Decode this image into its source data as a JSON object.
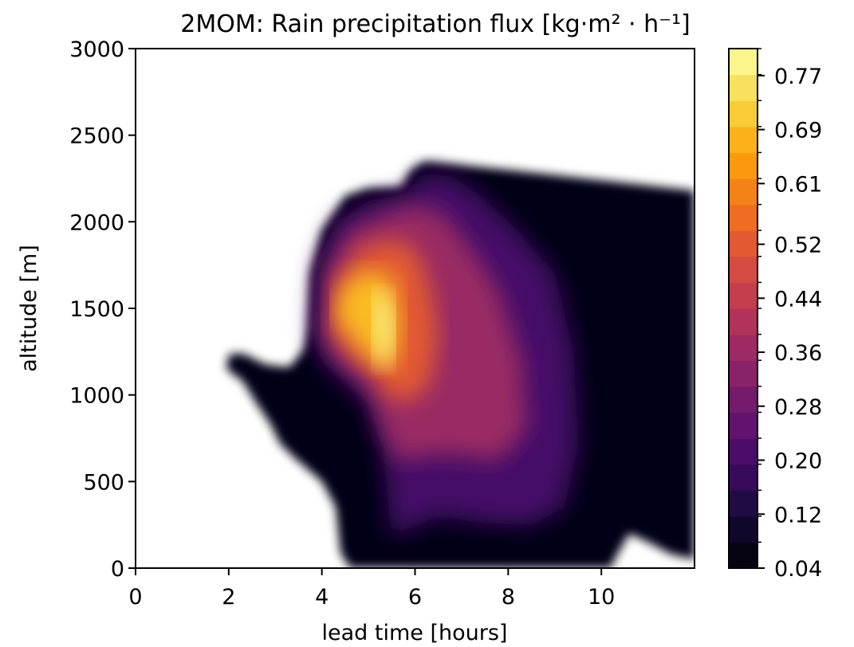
{
  "chart_data": {
    "type": "heatmap",
    "plot_style": "filled-contour",
    "title": "2MOM: Rain precipitation flux [kg·m² · h⁻¹]",
    "xlabel": "lead time [hours]",
    "ylabel": "altitude [m]",
    "xlim": [
      0,
      12
    ],
    "ylim": [
      0,
      3000
    ],
    "x_ticks": [
      "0",
      "2",
      "4",
      "6",
      "8",
      "10"
    ],
    "y_ticks": [
      "0",
      "500",
      "1000",
      "1500",
      "2000",
      "2500",
      "3000"
    ],
    "colormap": "inferno",
    "colorbar": {
      "min": 0.04,
      "max": 0.81,
      "levels": 20,
      "tick_labels": [
        "0.04",
        "0.12",
        "0.20",
        "0.28",
        "0.36",
        "0.44",
        "0.52",
        "0.61",
        "0.69",
        "0.77"
      ]
    },
    "regions": [
      {
        "name": "precipitation-envelope",
        "value": 0.06,
        "outline": [
          [
            1.95,
            1150
          ],
          [
            2.0,
            1235
          ],
          [
            2.3,
            1240
          ],
          [
            2.8,
            1175
          ],
          [
            3.3,
            1160
          ],
          [
            3.6,
            1260
          ],
          [
            3.7,
            1380
          ],
          [
            3.75,
            1700
          ],
          [
            4.0,
            1950
          ],
          [
            4.5,
            2150
          ],
          [
            5.0,
            2195
          ],
          [
            5.7,
            2200
          ],
          [
            5.9,
            2300
          ],
          [
            6.2,
            2350
          ],
          [
            8.0,
            2300
          ],
          [
            10.0,
            2240
          ],
          [
            12.0,
            2180
          ],
          [
            12.0,
            50
          ],
          [
            11.5,
            80
          ],
          [
            11.0,
            150
          ],
          [
            10.6,
            200
          ],
          [
            10.3,
            60
          ],
          [
            10.2,
            0
          ],
          [
            4.6,
            0
          ],
          [
            4.4,
            90
          ],
          [
            4.3,
            350
          ],
          [
            4.0,
            500
          ],
          [
            3.4,
            640
          ],
          [
            3.1,
            720
          ],
          [
            2.9,
            830
          ],
          [
            2.6,
            950
          ],
          [
            2.3,
            1080
          ]
        ]
      },
      {
        "name": "core-0.20",
        "value": 0.2,
        "outline": [
          [
            3.8,
            1350
          ],
          [
            3.9,
            1750
          ],
          [
            4.3,
            2000
          ],
          [
            5.0,
            2120
          ],
          [
            5.8,
            2160
          ],
          [
            6.2,
            2280
          ],
          [
            6.8,
            2260
          ],
          [
            7.4,
            2150
          ],
          [
            8.2,
            1950
          ],
          [
            9.0,
            1700
          ],
          [
            9.4,
            1250
          ],
          [
            9.5,
            700
          ],
          [
            9.2,
            350
          ],
          [
            8.5,
            250
          ],
          [
            7.5,
            260
          ],
          [
            6.5,
            300
          ],
          [
            5.8,
            220
          ],
          [
            5.5,
            180
          ],
          [
            5.3,
            700
          ],
          [
            5.0,
            950
          ],
          [
            4.4,
            1100
          ],
          [
            4.0,
            1200
          ]
        ]
      },
      {
        "name": "core-0.36",
        "value": 0.36,
        "outline": [
          [
            4.0,
            1350
          ],
          [
            4.1,
            1700
          ],
          [
            4.6,
            1950
          ],
          [
            5.4,
            2050
          ],
          [
            6.0,
            2100
          ],
          [
            6.6,
            2050
          ],
          [
            7.2,
            1850
          ],
          [
            7.8,
            1600
          ],
          [
            8.3,
            1200
          ],
          [
            8.4,
            800
          ],
          [
            7.8,
            620
          ],
          [
            7.0,
            650
          ],
          [
            6.3,
            650
          ],
          [
            5.6,
            620
          ],
          [
            5.3,
            800
          ],
          [
            5.0,
            1050
          ],
          [
            4.4,
            1180
          ]
        ]
      },
      {
        "name": "core-0.52",
        "value": 0.52,
        "outline": [
          [
            4.2,
            1400
          ],
          [
            4.3,
            1650
          ],
          [
            4.8,
            1850
          ],
          [
            5.5,
            1900
          ],
          [
            6.0,
            1850
          ],
          [
            6.3,
            1650
          ],
          [
            6.5,
            1350
          ],
          [
            6.3,
            1050
          ],
          [
            5.8,
            950
          ],
          [
            5.4,
            1000
          ],
          [
            5.0,
            1150
          ],
          [
            4.5,
            1250
          ]
        ]
      },
      {
        "name": "core-0.69",
        "value": 0.69,
        "outline": [
          [
            4.3,
            1450
          ],
          [
            4.4,
            1600
          ],
          [
            4.9,
            1720
          ],
          [
            5.5,
            1680
          ],
          [
            5.7,
            1450
          ],
          [
            5.6,
            1200
          ],
          [
            5.3,
            1150
          ],
          [
            4.9,
            1250
          ]
        ]
      },
      {
        "name": "core-0.79",
        "value": 0.79,
        "outline": [
          [
            5.1,
            1600
          ],
          [
            5.4,
            1580
          ],
          [
            5.55,
            1400
          ],
          [
            5.45,
            1180
          ],
          [
            5.25,
            1160
          ],
          [
            5.15,
            1350
          ]
        ]
      }
    ]
  }
}
